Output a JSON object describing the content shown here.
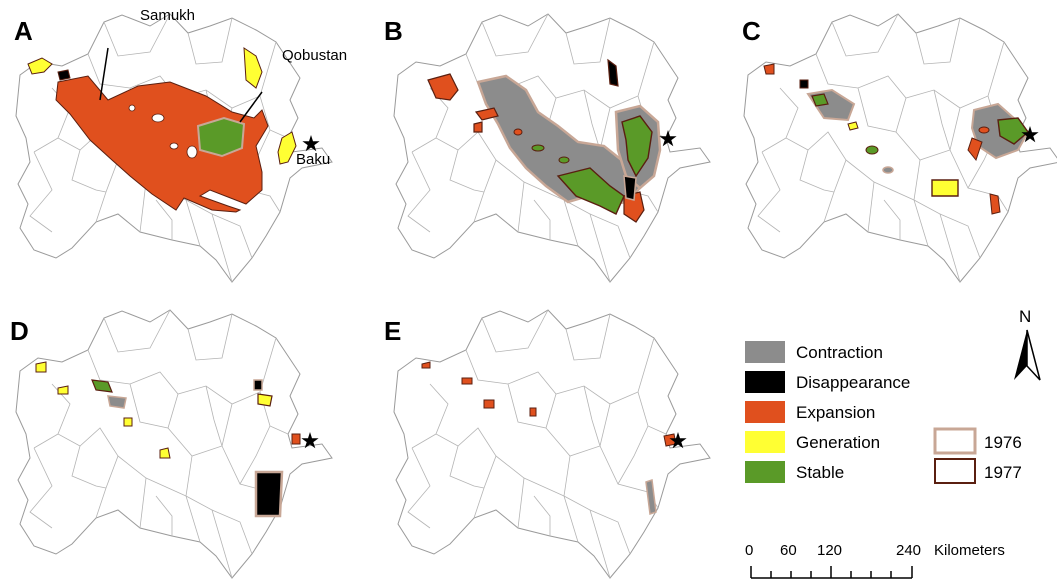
{
  "panels": [
    {
      "letter": "A"
    },
    {
      "letter": "B"
    },
    {
      "letter": "C"
    },
    {
      "letter": "D"
    },
    {
      "letter": "E"
    }
  ],
  "place_labels": {
    "samukh": "Samukh",
    "qobustan": "Qobustan",
    "baku": "Baku"
  },
  "legend": {
    "categories": [
      {
        "label": "Contraction",
        "color": "#8c8c8c"
      },
      {
        "label": "Disappearance",
        "color": "#000000"
      },
      {
        "label": "Expansion",
        "color": "#e0501e"
      },
      {
        "label": "Generation",
        "color": "#ffff33"
      },
      {
        "label": "Stable",
        "color": "#5a9a28"
      }
    ],
    "years": [
      {
        "label": "1976",
        "color": "#c8a796"
      },
      {
        "label": "1977",
        "color": "#5a1f10"
      }
    ]
  },
  "north_arrow": {
    "label": "N"
  },
  "scale_bar": {
    "ticks": [
      "0",
      "60",
      "120",
      "240"
    ],
    "unit": "Kilometers"
  }
}
